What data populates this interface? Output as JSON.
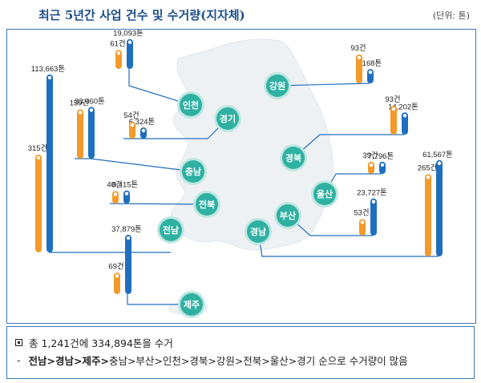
{
  "title": "최근 5년간 사업 건수 및 수거량(지자체)",
  "unit_note": "(단위: 톤)",
  "colors": {
    "tonnage_bar": "#1f6fc0",
    "count_bar": "#f39a2b",
    "region_circle": "#2fb1a2",
    "map_fill": "#eef1f4",
    "leader_line": "#1f6fc0",
    "accent_text": "#1c4e8a"
  },
  "chart_data": {
    "type": "bar",
    "series": [
      {
        "name": "톤",
        "unit": "톤"
      },
      {
        "name": "건",
        "unit": "건"
      }
    ],
    "regions": [
      {
        "name": "전남",
        "tonnage": 113663,
        "tonnage_label": "113,663톤",
        "count": 315,
        "count_label": "315건"
      },
      {
        "name": "경남",
        "tonnage": 61567,
        "tonnage_label": "61,567톤",
        "count": 265,
        "count_label": "265건"
      },
      {
        "name": "제주",
        "tonnage": 37879,
        "tonnage_label": "37,879톤",
        "count": 69,
        "count_label": "69건"
      },
      {
        "name": "충남",
        "tonnage": 33060,
        "tonnage_label": "33,060톤",
        "count": 159,
        "count_label": "159건"
      },
      {
        "name": "부산",
        "tonnage": 23727,
        "tonnage_label": "23,727톤",
        "count": 53,
        "count_label": "53건"
      },
      {
        "name": "인천",
        "tonnage": 19093,
        "tonnage_label": "19,093톤",
        "count": 61,
        "count_label": "61건"
      },
      {
        "name": "경북",
        "tonnage": 14202,
        "tonnage_label": "14,202톤",
        "count": 93,
        "count_label": "93건"
      },
      {
        "name": "강원",
        "tonnage": 9168,
        "tonnage_label": "9,168톤",
        "count": 93,
        "count_label": "93건"
      },
      {
        "name": "전북",
        "tonnage": 8415,
        "tonnage_label": "8,415톤",
        "count": 40,
        "count_label": "40건"
      },
      {
        "name": "울산",
        "tonnage": 7796,
        "tonnage_label": "7,796톤",
        "count": 39,
        "count_label": "39건"
      },
      {
        "name": "경기",
        "tonnage": 6324,
        "tonnage_label": "6,324톤",
        "count": 54,
        "count_label": "54건"
      }
    ]
  },
  "summary": {
    "line1": "총  1,241건에 334,894톤을 수거",
    "line2_dash": "-",
    "line2_highlight": "전남>경남>제주>",
    "line2_rest": "충남>부산>인천>경북>강원>전북>울산>경기  순으로 수거량이 많음"
  }
}
